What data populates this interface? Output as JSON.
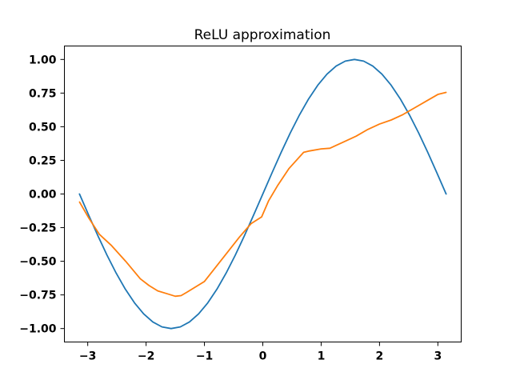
{
  "chart_data": {
    "type": "line",
    "title": "ReLU approximation",
    "xlabel": "",
    "ylabel": "",
    "xlim": [
      -3.4,
      3.4
    ],
    "ylim": [
      -1.1,
      1.1
    ],
    "x_ticks": [
      -3,
      -2,
      -1,
      0,
      1,
      2,
      3
    ],
    "x_tick_labels": [
      "−3",
      "−2",
      "−1",
      "0",
      "1",
      "2",
      "3"
    ],
    "y_ticks": [
      1.0,
      0.75,
      0.5,
      0.25,
      0.0,
      -0.25,
      -0.5,
      -0.75,
      -1.0
    ],
    "y_tick_labels": [
      "1.00",
      "0.75",
      "0.50",
      "0.25",
      "0.00",
      "−0.25",
      "−0.50",
      "−0.75",
      "−1.00"
    ],
    "grid": false,
    "legend": "none",
    "series": [
      {
        "color": "#1f77b4",
        "x": [
          -3.1416,
          -2.9845,
          -2.8274,
          -2.6704,
          -2.5133,
          -2.3562,
          -2.1991,
          -2.042,
          -1.885,
          -1.7279,
          -1.5708,
          -1.4137,
          -1.2566,
          -1.0996,
          -0.9425,
          -0.7854,
          -0.6283,
          -0.4712,
          -0.3142,
          -0.1571,
          0.0,
          0.1571,
          0.3142,
          0.4712,
          0.6283,
          0.7854,
          0.9425,
          1.0996,
          1.2566,
          1.4137,
          1.5708,
          1.7279,
          1.885,
          2.042,
          2.1991,
          2.3562,
          2.5133,
          2.6704,
          2.8274,
          2.9845,
          3.1416
        ],
        "y": [
          0.0,
          -0.1564,
          -0.309,
          -0.454,
          -0.5878,
          -0.7071,
          -0.809,
          -0.891,
          -0.9511,
          -0.9877,
          -1.0,
          -0.9877,
          -0.9511,
          -0.891,
          -0.809,
          -0.7071,
          -0.5878,
          -0.454,
          -0.309,
          -0.1564,
          0.0,
          0.1564,
          0.309,
          0.454,
          0.5878,
          0.7071,
          0.809,
          0.891,
          0.9511,
          0.9877,
          1.0,
          0.9877,
          0.9511,
          0.891,
          0.809,
          0.7071,
          0.5878,
          0.454,
          0.309,
          0.1564,
          0.0
        ]
      },
      {
        "color": "#ff7f0e",
        "x": [
          -3.14,
          -2.98,
          -2.8,
          -2.6,
          -2.35,
          -2.1,
          -1.95,
          -1.8,
          -1.65,
          -1.5,
          -1.4,
          -1.3,
          -1.0,
          -0.8,
          -0.6,
          -0.4,
          -0.2,
          -0.02,
          0.0,
          0.1,
          0.25,
          0.45,
          0.7,
          0.8,
          1.0,
          1.15,
          1.25,
          1.4,
          1.6,
          1.8,
          2.0,
          2.2,
          2.4,
          2.6,
          2.8,
          3.0,
          3.14
        ],
        "y": [
          -0.06,
          -0.18,
          -0.3,
          -0.38,
          -0.5,
          -0.63,
          -0.68,
          -0.72,
          -0.74,
          -0.76,
          -0.755,
          -0.73,
          -0.65,
          -0.54,
          -0.43,
          -0.32,
          -0.22,
          -0.17,
          -0.15,
          -0.05,
          0.06,
          0.19,
          0.31,
          0.32,
          0.335,
          0.34,
          0.36,
          0.39,
          0.43,
          0.48,
          0.52,
          0.55,
          0.59,
          0.64,
          0.69,
          0.74,
          0.755
        ]
      }
    ]
  }
}
